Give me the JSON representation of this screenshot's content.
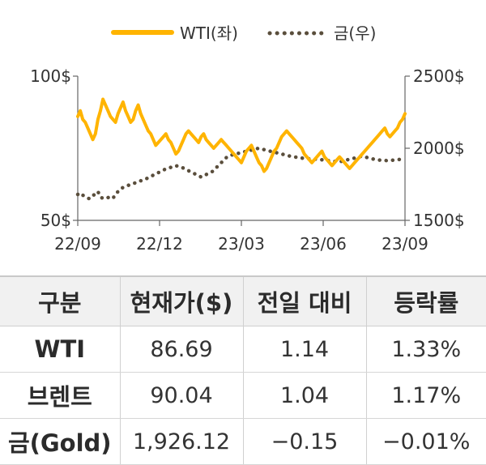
{
  "chart_data": {
    "type": "line",
    "legend": [
      {
        "name": "WTI(좌)",
        "color": "#ffb400",
        "style": "solid"
      },
      {
        "name": "금(우)",
        "color": "#5a4e3c",
        "style": "dotted"
      }
    ],
    "x_ticks": [
      "22/09",
      "22/12",
      "23/03",
      "23/06",
      "23/09"
    ],
    "y_left_ticks": [
      "100$",
      "50$"
    ],
    "y_right_ticks": [
      "2500$",
      "2000$",
      "1500$"
    ],
    "ylim_left": [
      50,
      100
    ],
    "ylim_right": [
      1500,
      2500
    ],
    "series": [
      {
        "name": "WTI(좌)",
        "axis": "left",
        "values": [
          86,
          88,
          85,
          84,
          82,
          80,
          78,
          80,
          85,
          88,
          92,
          90,
          88,
          86,
          85,
          84,
          87,
          89,
          91,
          88,
          86,
          84,
          85,
          88,
          90,
          87,
          85,
          83,
          81,
          80,
          78,
          76,
          77,
          78,
          79,
          80,
          78,
          77,
          75,
          73,
          74,
          76,
          78,
          80,
          81,
          80,
          79,
          78,
          77,
          79,
          80,
          78,
          77,
          76,
          75,
          76,
          77,
          78,
          77,
          76,
          75,
          74,
          73,
          72,
          71,
          70,
          72,
          74,
          75,
          76,
          74,
          72,
          70,
          69,
          67,
          68,
          70,
          72,
          74,
          75,
          77,
          79,
          80,
          81,
          80,
          79,
          78,
          77,
          76,
          75,
          73,
          72,
          71,
          70,
          71,
          72,
          73,
          74,
          72,
          71,
          70,
          69,
          70,
          71,
          72,
          71,
          70,
          69,
          68,
          69,
          70,
          71,
          72,
          73,
          74,
          75,
          76,
          77,
          78,
          79,
          80,
          81,
          82,
          80,
          79,
          80,
          81,
          82,
          84,
          85,
          87
        ]
      },
      {
        "name": "금(우)",
        "axis": "right",
        "values": [
          1680,
          1690,
          1670,
          1660,
          1650,
          1670,
          1680,
          1700,
          1660,
          1650,
          1655,
          1660,
          1650,
          1670,
          1700,
          1720,
          1730,
          1740,
          1745,
          1750,
          1760,
          1770,
          1775,
          1780,
          1790,
          1800,
          1810,
          1820,
          1830,
          1840,
          1850,
          1860,
          1865,
          1870,
          1880,
          1875,
          1870,
          1860,
          1850,
          1840,
          1830,
          1820,
          1810,
          1800,
          1810,
          1820,
          1830,
          1840,
          1860,
          1880,
          1900,
          1920,
          1940,
          1950,
          1955,
          1960,
          1965,
          1970,
          1975,
          1980,
          1985,
          1990,
          1995,
          2000,
          1995,
          1990,
          1985,
          1980,
          1975,
          1970,
          1965,
          1960,
          1955,
          1950,
          1945,
          1940,
          1938,
          1935,
          1932,
          1930,
          1928,
          1926,
          1925,
          1924,
          1922,
          1920,
          1918,
          1915,
          1912,
          1910,
          1908,
          1905,
          1910,
          1915,
          1920,
          1925,
          1930,
          1935,
          1940,
          1945,
          1940,
          1935,
          1930,
          1925,
          1920,
          1918,
          1916,
          1915,
          1914,
          1916,
          1918,
          1920,
          1922,
          1924,
          1926
        ]
      }
    ]
  },
  "table": {
    "headers": [
      "구분",
      "현재가($)",
      "전일 대비",
      "등락률"
    ],
    "rows": [
      [
        "WTI",
        "86.69",
        "1.14",
        "1.33%"
      ],
      [
        "브렌트",
        "90.04",
        "1.04",
        "1.17%"
      ],
      [
        "금(Gold)",
        "1,926.12",
        "−0.15",
        "−0.01%"
      ]
    ]
  }
}
